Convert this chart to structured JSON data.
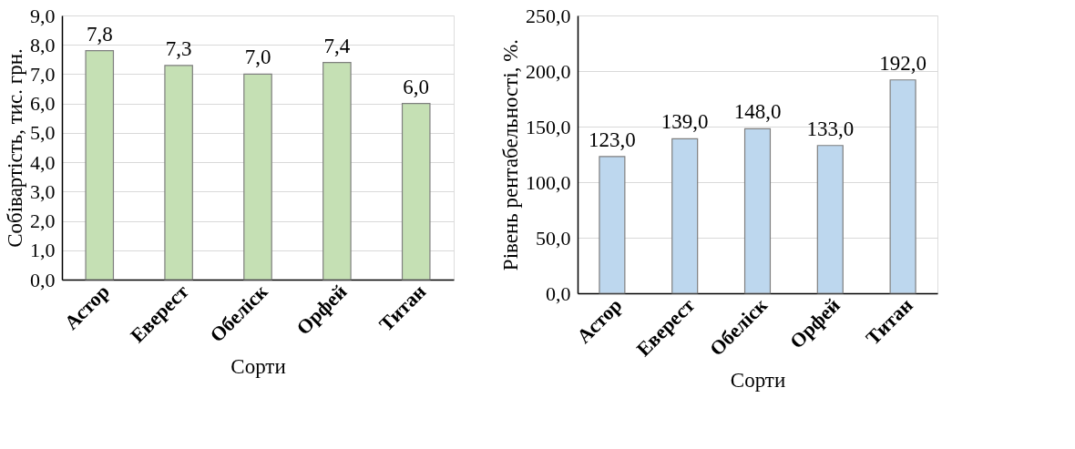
{
  "chart_data": [
    {
      "type": "bar",
      "categories": [
        "Астор",
        "Еверест",
        "Обеліск",
        "Орфей",
        "Титан"
      ],
      "values": [
        7.8,
        7.3,
        7.0,
        7.4,
        6.0
      ],
      "value_labels": [
        "7,8",
        "7,3",
        "7,0",
        "7,4",
        "6,0"
      ],
      "color": "#c5e0b4",
      "xlabel": "Сорти",
      "ylabel": "Собівартість, тис. грн.",
      "ylim": [
        0,
        9
      ],
      "yticks": [
        {
          "value": 0,
          "label": "0,0"
        },
        {
          "value": 1,
          "label": "1,0"
        },
        {
          "value": 2,
          "label": "2,0"
        },
        {
          "value": 3,
          "label": "3,0"
        },
        {
          "value": 4,
          "label": "4,0"
        },
        {
          "value": 5,
          "label": "5,0"
        },
        {
          "value": 6,
          "label": "6,0"
        },
        {
          "value": 7,
          "label": "7,0"
        },
        {
          "value": 8,
          "label": "8,0"
        },
        {
          "value": 9,
          "label": "9,0"
        }
      ],
      "grid": "y"
    },
    {
      "type": "bar",
      "categories": [
        "Астор",
        "Еверест",
        "Обеліск",
        "Орфей",
        "Титан"
      ],
      "values": [
        123.0,
        139.0,
        148.0,
        133.0,
        192.0
      ],
      "value_labels": [
        "123,0",
        "139,0",
        "148,0",
        "133,0",
        "192,0"
      ],
      "color": "#bdd7ee",
      "xlabel": "Сорти",
      "ylabel": "Рівень рентабельності, %.",
      "ylim": [
        0,
        250
      ],
      "yticks": [
        {
          "value": 0,
          "label": "0,0"
        },
        {
          "value": 50,
          "label": "50,0"
        },
        {
          "value": 100,
          "label": "100,0"
        },
        {
          "value": 150,
          "label": "150,0"
        },
        {
          "value": 200,
          "label": "200,0"
        },
        {
          "value": 250,
          "label": "250,0"
        }
      ],
      "grid": "y"
    }
  ]
}
